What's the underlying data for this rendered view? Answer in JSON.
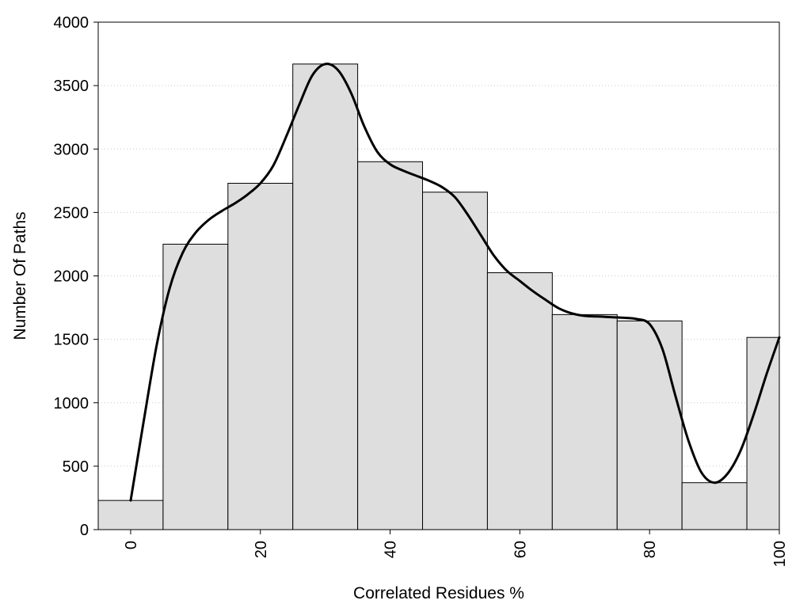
{
  "chart_data": {
    "type": "bar",
    "xlabel": "Correlated Residues %",
    "ylabel": "Number Of Paths",
    "xlim": [
      -5,
      100
    ],
    "ylim": [
      0,
      4000
    ],
    "x_ticks": [
      0,
      20,
      40,
      60,
      80,
      100
    ],
    "y_ticks": [
      0,
      500,
      1000,
      1500,
      2000,
      2500,
      3000,
      3500,
      4000
    ],
    "grid": "horizontal dotted",
    "bar_color": "#dedede",
    "line_color": "#000000",
    "bins": [
      {
        "x0": -5,
        "x1": 5,
        "value": 230
      },
      {
        "x0": 5,
        "x1": 15,
        "value": 2250
      },
      {
        "x0": 15,
        "x1": 25,
        "value": 2730
      },
      {
        "x0": 25,
        "x1": 35,
        "value": 3670
      },
      {
        "x0": 35,
        "x1": 45,
        "value": 2900
      },
      {
        "x0": 45,
        "x1": 55,
        "value": 2660
      },
      {
        "x0": 55,
        "x1": 65,
        "value": 2025
      },
      {
        "x0": 65,
        "x1": 75,
        "value": 1695
      },
      {
        "x0": 75,
        "x1": 85,
        "value": 1645
      },
      {
        "x0": 85,
        "x1": 95,
        "value": 370
      },
      {
        "x0": 95,
        "x1": 100,
        "value": 1515
      }
    ],
    "curve": [
      [
        0,
        230
      ],
      [
        2,
        850
      ],
      [
        4,
        1450
      ],
      [
        6,
        1900
      ],
      [
        8,
        2180
      ],
      [
        10,
        2340
      ],
      [
        12,
        2440
      ],
      [
        14,
        2510
      ],
      [
        16,
        2570
      ],
      [
        18,
        2640
      ],
      [
        20,
        2730
      ],
      [
        22,
        2870
      ],
      [
        24,
        3100
      ],
      [
        26,
        3350
      ],
      [
        28,
        3580
      ],
      [
        30,
        3670
      ],
      [
        32,
        3620
      ],
      [
        34,
        3440
      ],
      [
        36,
        3180
      ],
      [
        38,
        2980
      ],
      [
        40,
        2880
      ],
      [
        42,
        2830
      ],
      [
        44,
        2790
      ],
      [
        46,
        2750
      ],
      [
        48,
        2700
      ],
      [
        50,
        2620
      ],
      [
        52,
        2480
      ],
      [
        54,
        2320
      ],
      [
        56,
        2160
      ],
      [
        58,
        2040
      ],
      [
        60,
        1960
      ],
      [
        62,
        1880
      ],
      [
        64,
        1810
      ],
      [
        66,
        1745
      ],
      [
        68,
        1705
      ],
      [
        70,
        1685
      ],
      [
        72,
        1680
      ],
      [
        74,
        1675
      ],
      [
        76,
        1670
      ],
      [
        78,
        1660
      ],
      [
        80,
        1620
      ],
      [
        82,
        1420
      ],
      [
        84,
        1050
      ],
      [
        86,
        700
      ],
      [
        88,
        450
      ],
      [
        90,
        370
      ],
      [
        92,
        440
      ],
      [
        94,
        620
      ],
      [
        96,
        900
      ],
      [
        98,
        1220
      ],
      [
        100,
        1515
      ]
    ]
  }
}
